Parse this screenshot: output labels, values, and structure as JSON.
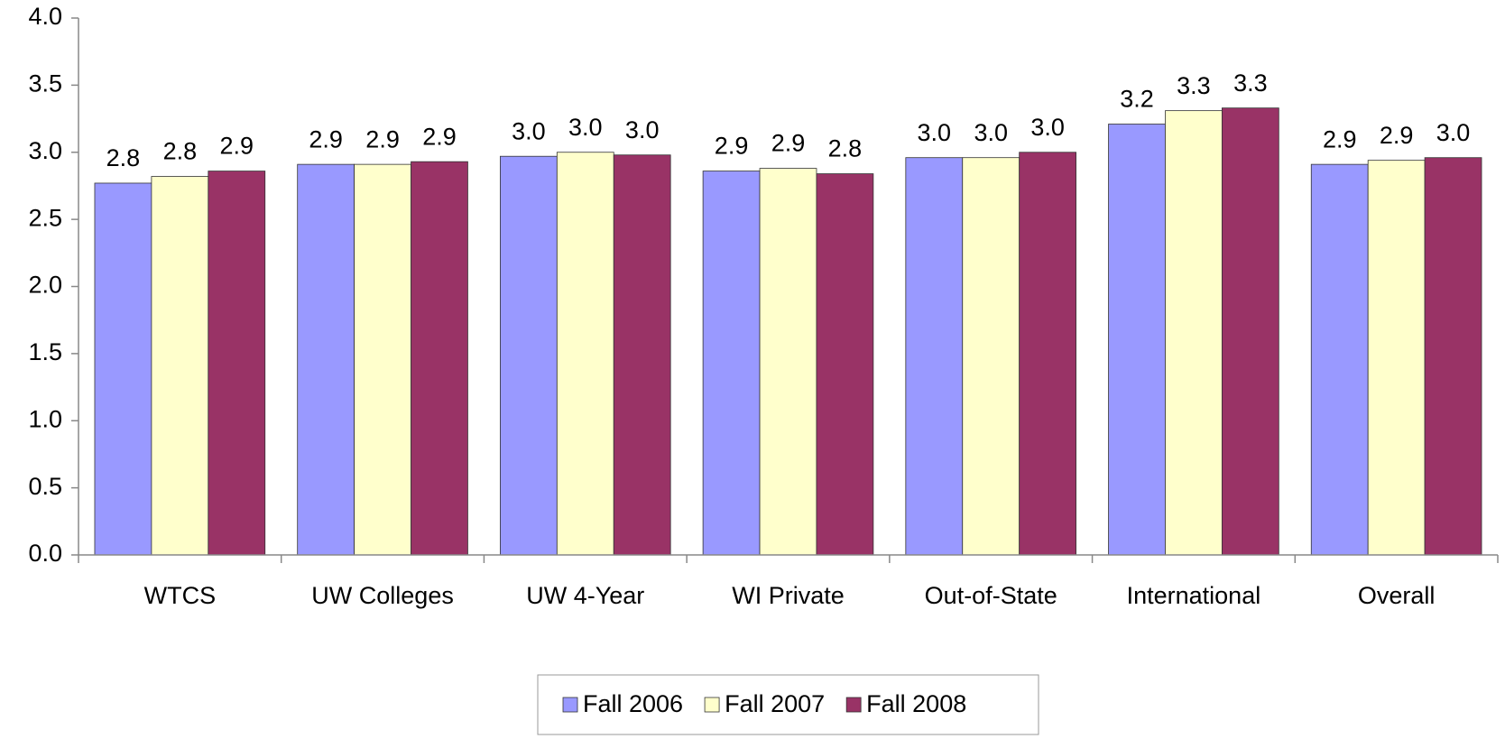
{
  "chart_data": {
    "type": "bar",
    "categories": [
      "WTCS",
      "UW Colleges",
      "UW 4-Year",
      "WI Private",
      "Out-of-State",
      "International",
      "Overall"
    ],
    "series": [
      {
        "name": "Fall 2006",
        "color": "#9999ff",
        "values": [
          2.77,
          2.91,
          2.97,
          2.86,
          2.96,
          3.21,
          2.91
        ],
        "value_labels": [
          "2.8",
          "2.9",
          "3.0",
          "2.9",
          "3.0",
          "3.2",
          "2.9"
        ]
      },
      {
        "name": "Fall 2007",
        "color": "#ffffcc",
        "values": [
          2.82,
          2.91,
          3.0,
          2.88,
          2.96,
          3.31,
          2.94
        ],
        "value_labels": [
          "2.8",
          "2.9",
          "3.0",
          "2.9",
          "3.0",
          "3.3",
          "2.9"
        ]
      },
      {
        "name": "Fall 2008",
        "color": "#993366",
        "values": [
          2.86,
          2.93,
          2.98,
          2.84,
          3.0,
          3.33,
          2.96
        ],
        "value_labels": [
          "2.9",
          "2.9",
          "3.0",
          "2.8",
          "3.0",
          "3.3",
          "3.0"
        ]
      }
    ],
    "ylim": [
      0,
      4
    ],
    "yticks": [
      {
        "value": 0,
        "label": "0.0"
      },
      0.5,
      {
        "value": 1,
        "label": "1.0"
      },
      1.5,
      {
        "value": 2,
        "label": "2.0"
      },
      2.5,
      {
        "value": 3,
        "label": "3.0"
      },
      3.5,
      {
        "value": 4,
        "label": "4.0"
      }
    ],
    "legend": "bottom"
  }
}
